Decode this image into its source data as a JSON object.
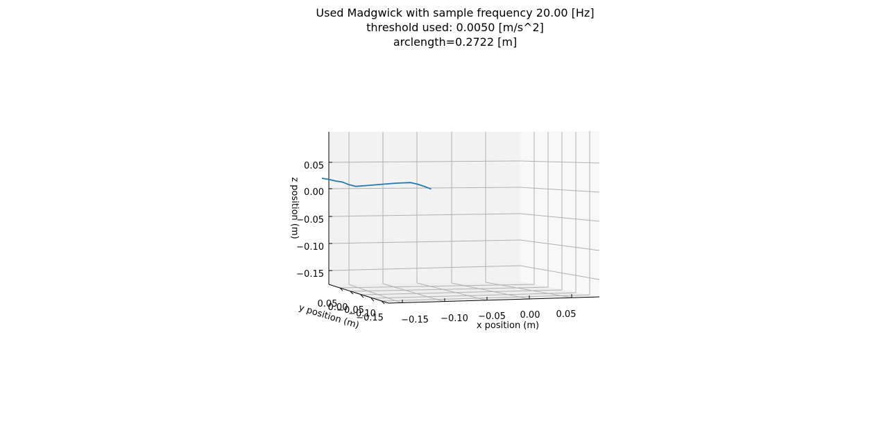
{
  "chart_data": {
    "type": "line",
    "projection": "3d",
    "title_lines": [
      "Used Madgwick with sample frequency 20.00 [Hz]",
      "threshold used: 0.0050 [m/s^2]",
      "arclength=0.2722 [m]"
    ],
    "xlabel": "x position (m)",
    "ylabel": "y position (m)",
    "zlabel": "z position (m)",
    "x_ticks": [
      "−0.15",
      "−0.10",
      "−0.05",
      "0.00",
      "0.05"
    ],
    "y_ticks": [
      "0.05",
      "0.00",
      "−0.05",
      "−0.10",
      "−0.15"
    ],
    "z_ticks": [
      "0.05",
      "0.00",
      "−0.05",
      "−0.10",
      "−0.15"
    ],
    "grid": true,
    "colors": {
      "line": "#1f77b4",
      "pane_back": "#f2f2f2",
      "pane_side": "#f8f8f8",
      "grid": "#b0b0b0"
    },
    "series": [
      {
        "x": [
          -0.19,
          -0.18,
          -0.17,
          -0.16,
          -0.15,
          -0.14,
          -0.12,
          -0.1,
          -0.08,
          -0.06,
          -0.05,
          -0.04,
          -0.03
        ],
        "z": [
          0.018,
          0.016,
          0.013,
          0.011,
          0.006,
          0.003,
          0.005,
          0.007,
          0.009,
          0.01,
          0.007,
          0.003,
          -0.002
        ]
      }
    ]
  }
}
